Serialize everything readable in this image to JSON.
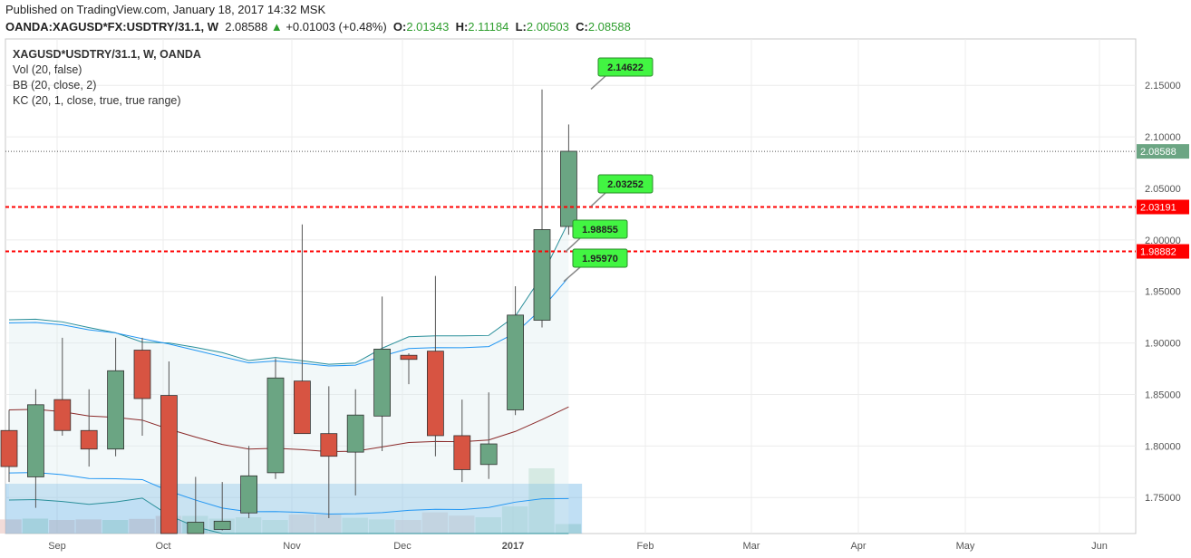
{
  "header": {
    "published": "Published on TradingView.com, January 18, 2017 14:32 MSK",
    "symbol": "OANDA:XAGUSD*FX:USDTRY/31.1, W",
    "last": "2.08588",
    "change_arrow": "▲",
    "change": "+0.01003 (+0.48%)",
    "o_label": "O:",
    "o": "2.01343",
    "h_label": "H:",
    "h": "2.11184",
    "l_label": "L:",
    "l": "2.00503",
    "c_label": "C:",
    "c": "2.08588"
  },
  "legend": {
    "title": "XAGUSD*USDTRY/31.1, W, OANDA",
    "vol": "Vol (20, false)",
    "bb": "BB (20, close, 2)",
    "kc": "KC (20, 1, close, true, true range)"
  },
  "colors": {
    "up": "#6ba583",
    "down": "#d75442",
    "bb_band": "#2a8f9a",
    "kc_band": "#2196f3",
    "ma": "#8b2a2a",
    "hline": "#ff0000",
    "label_green": "#42f542"
  },
  "chart_data": {
    "type": "candlestick",
    "y_axis": {
      "min": 1.715,
      "max": 2.195,
      "ticks": [
        "2.15000",
        "2.10000",
        "2.05000",
        "2.00000",
        "1.95000",
        "1.90000",
        "1.85000",
        "1.80000",
        "1.75000"
      ]
    },
    "x_labels": [
      "Sep",
      "Oct",
      "Nov",
      "Dec",
      "2017",
      "Feb",
      "Mar",
      "Apr",
      "May",
      "Jun"
    ],
    "candles": [
      {
        "o": 1.815,
        "h": 1.835,
        "l": 1.765,
        "c": 1.78
      },
      {
        "o": 1.77,
        "h": 1.855,
        "l": 1.74,
        "c": 1.84
      },
      {
        "o": 1.845,
        "h": 1.905,
        "l": 1.81,
        "c": 1.815
      },
      {
        "o": 1.815,
        "h": 1.855,
        "l": 1.78,
        "c": 1.797
      },
      {
        "o": 1.797,
        "h": 1.905,
        "l": 1.79,
        "c": 1.873
      },
      {
        "o": 1.893,
        "h": 1.905,
        "l": 1.81,
        "c": 1.846
      },
      {
        "o": 1.849,
        "h": 1.882,
        "l": 1.715,
        "c": 1.715
      },
      {
        "o": 1.715,
        "h": 1.77,
        "l": 1.715,
        "c": 1.726
      },
      {
        "o": 1.719,
        "h": 1.765,
        "l": 1.718,
        "c": 1.727
      },
      {
        "o": 1.735,
        "h": 1.8,
        "l": 1.73,
        "c": 1.771
      },
      {
        "o": 1.774,
        "h": 1.885,
        "l": 1.768,
        "c": 1.866
      },
      {
        "o": 1.863,
        "h": 2.015,
        "l": 1.812,
        "c": 1.812
      },
      {
        "o": 1.812,
        "h": 1.858,
        "l": 1.73,
        "c": 1.79
      },
      {
        "o": 1.794,
        "h": 1.855,
        "l": 1.752,
        "c": 1.83
      },
      {
        "o": 1.829,
        "h": 1.945,
        "l": 1.795,
        "c": 1.894
      },
      {
        "o": 1.888,
        "h": 1.89,
        "l": 1.86,
        "c": 1.884
      },
      {
        "o": 1.892,
        "h": 1.965,
        "l": 1.79,
        "c": 1.81
      },
      {
        "o": 1.81,
        "h": 1.845,
        "l": 1.765,
        "c": 1.777
      },
      {
        "o": 1.782,
        "h": 1.852,
        "l": 1.768,
        "c": 1.802
      },
      {
        "o": 1.835,
        "h": 1.955,
        "l": 1.83,
        "c": 1.927
      },
      {
        "o": 1.922,
        "h": 2.146,
        "l": 1.915,
        "c": 2.01
      },
      {
        "o": 2.013,
        "h": 2.112,
        "l": 2.005,
        "c": 2.086
      }
    ],
    "volume_bars": [
      0.52,
      0.55,
      0.5,
      0.52,
      0.5,
      0.54,
      0.65,
      0.65,
      0.55,
      0.6,
      0.5,
      0.7,
      0.7,
      0.58,
      0.52,
      0.5,
      0.78,
      0.66,
      0.6,
      1.0,
      2.4,
      0.35
    ],
    "hlines": [
      {
        "price": 2.03191,
        "label": "2.03191"
      },
      {
        "price": 1.98882,
        "label": "1.98882"
      }
    ],
    "current_price": {
      "price": 2.08588,
      "label": "2.08588"
    },
    "callouts": [
      {
        "price": 2.14622,
        "label": "2.14622"
      },
      {
        "price": 2.03252,
        "label": "2.03252"
      },
      {
        "price": 1.98855,
        "label": "1.98855"
      },
      {
        "price": 1.9597,
        "label": "1.95970"
      }
    ]
  }
}
